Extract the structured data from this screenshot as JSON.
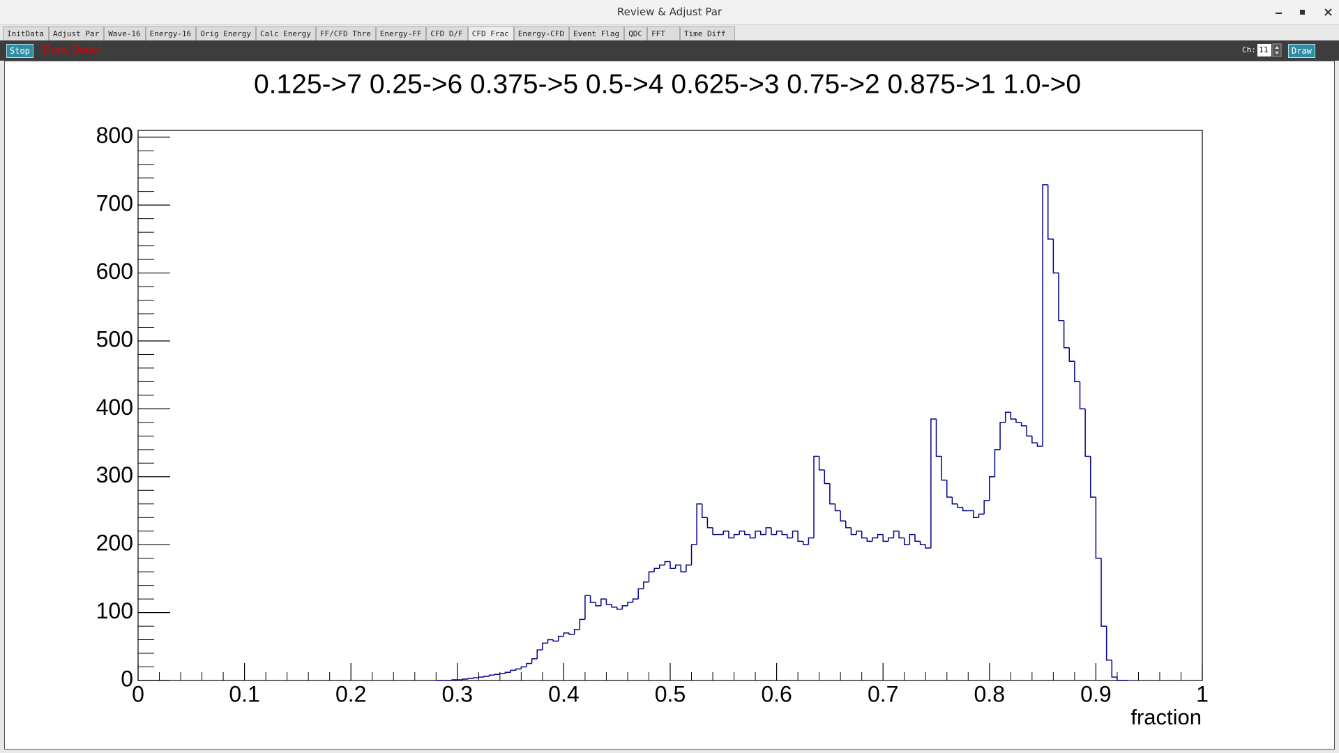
{
  "window": {
    "title": "Review & Adjust Par"
  },
  "tabs": [
    "InitData",
    "Adjust Par",
    "Wave-16",
    "Energy-16",
    "Orig Energy",
    "Calc Energy",
    "FF/CFD Thre",
    "Energy-FF",
    "CFD D/F",
    "CFD Frac",
    "Energy-CFD",
    "Event Flag",
    "QDC",
    "FFT",
    "Time Diff"
  ],
  "toolbar": {
    "stop_button": "Stop",
    "status": "Draw Done!",
    "channel_label": "Ch:",
    "channel_value": 11,
    "draw_button": "Draw"
  },
  "chart_data": {
    "type": "histogram",
    "title": "0.125->7 0.25->6 0.375->5 0.5->4 0.625->3 0.75->2 0.875->1 1.0->0",
    "x_label": "fraction",
    "color": "#00008b",
    "bins": [
      0.28,
      0.285,
      0.29,
      0.295,
      0.3,
      0.305,
      0.31,
      0.315,
      0.32,
      0.325,
      0.33,
      0.335,
      0.34,
      0.345,
      0.35,
      0.355,
      0.36,
      0.365,
      0.37,
      0.375,
      0.38,
      0.385,
      0.39,
      0.395,
      0.4,
      0.405,
      0.41,
      0.415,
      0.42,
      0.425,
      0.43,
      0.435,
      0.44,
      0.445,
      0.45,
      0.455,
      0.46,
      0.465,
      0.47,
      0.475,
      0.48,
      0.485,
      0.49,
      0.495,
      0.5,
      0.505,
      0.51,
      0.515,
      0.52,
      0.525,
      0.53,
      0.535,
      0.54,
      0.545,
      0.55,
      0.555,
      0.56,
      0.565,
      0.57,
      0.575,
      0.58,
      0.585,
      0.59,
      0.595,
      0.6,
      0.605,
      0.61,
      0.615,
      0.62,
      0.625,
      0.63,
      0.635,
      0.64,
      0.645,
      0.65,
      0.655,
      0.66,
      0.665,
      0.67,
      0.675,
      0.68,
      0.685,
      0.69,
      0.695,
      0.7,
      0.705,
      0.71,
      0.715,
      0.72,
      0.725,
      0.73,
      0.735,
      0.74,
      0.745,
      0.75,
      0.755,
      0.76,
      0.765,
      0.77,
      0.775,
      0.78,
      0.785,
      0.79,
      0.795,
      0.8,
      0.805,
      0.81,
      0.815,
      0.82,
      0.825,
      0.83,
      0.835,
      0.84,
      0.845,
      0.85,
      0.855,
      0.86,
      0.865,
      0.87,
      0.875,
      0.88,
      0.885,
      0.89,
      0.895,
      0.9,
      0.905,
      0.91,
      0.915,
      0.92,
      0.925,
      0.93
    ],
    "counts": [
      0,
      0,
      0,
      1,
      1,
      2,
      3,
      4,
      5,
      6,
      8,
      9,
      10,
      12,
      15,
      17,
      20,
      25,
      32,
      45,
      55,
      60,
      58,
      65,
      70,
      68,
      75,
      90,
      125,
      115,
      110,
      120,
      112,
      108,
      105,
      110,
      115,
      120,
      135,
      145,
      160,
      165,
      170,
      175,
      165,
      170,
      160,
      170,
      200,
      260,
      240,
      225,
      215,
      215,
      220,
      210,
      215,
      220,
      215,
      210,
      220,
      215,
      225,
      215,
      220,
      215,
      210,
      220,
      205,
      200,
      210,
      330,
      310,
      290,
      260,
      250,
      235,
      225,
      215,
      220,
      210,
      205,
      210,
      215,
      205,
      210,
      220,
      210,
      200,
      215,
      205,
      200,
      195,
      385,
      330,
      295,
      270,
      260,
      255,
      250,
      250,
      240,
      245,
      265,
      300,
      340,
      380,
      395,
      385,
      380,
      375,
      360,
      350,
      345,
      730,
      650,
      600,
      530,
      490,
      470,
      440,
      400,
      330,
      270,
      180,
      80,
      30,
      5,
      0,
      0
    ],
    "xlim": [
      0,
      1
    ],
    "ylim": [
      0,
      810
    ],
    "xticks": [
      0,
      0.1,
      0.2,
      0.3,
      0.4,
      0.5,
      0.6,
      0.7,
      0.8,
      0.9,
      1
    ],
    "yticks": [
      0,
      100,
      200,
      300,
      400,
      500,
      600,
      700,
      800
    ]
  }
}
